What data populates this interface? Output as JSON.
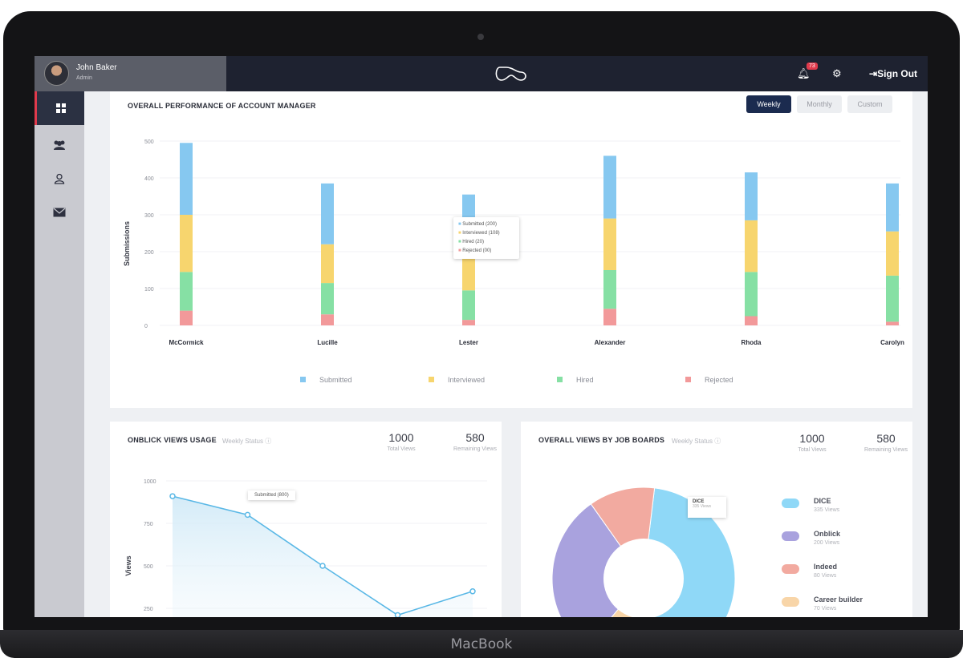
{
  "device": {
    "brand": "MacBook"
  },
  "topbar": {
    "user_name": "John Baker",
    "user_role": "Admin",
    "notification_count": "73",
    "signout_label": "Sign Out"
  },
  "sidebar": {
    "items": [
      {
        "name": "dashboard",
        "icon": "grid-icon"
      },
      {
        "name": "users",
        "icon": "users-icon"
      },
      {
        "name": "profile",
        "icon": "user-icon"
      },
      {
        "name": "mail",
        "icon": "mail-icon"
      }
    ]
  },
  "performance": {
    "title": "OVERALL PERFORMANCE OF ACCOUNT MANAGER",
    "buttons": [
      "Weekly",
      "Monthly",
      "Custom"
    ],
    "tooltip": [
      "Submitted (200)",
      "Interviewed (108)",
      "Hired (20)",
      "Rejected (00)"
    ]
  },
  "usage": {
    "title": "ONBLICK VIEWS USAGE",
    "status": "Weekly Status",
    "total": "1000",
    "total_label": "Total Views",
    "remaining": "580",
    "remaining_label": "Remaining Views",
    "tooltip": "Submitted (800)"
  },
  "boards": {
    "title": "OVERALL VIEWS BY JOB BOARDS",
    "status": "Weekly Status",
    "total": "1000",
    "total_label": "Total Views",
    "remaining": "580",
    "remaining_label": "Remaining Views",
    "tooltip_title": "DICE",
    "tooltip_sub": "335 Views",
    "legend": [
      {
        "name": "DICE",
        "sub": "335 Views"
      },
      {
        "name": "Onblick",
        "sub": "200 Views"
      },
      {
        "name": "Indeed",
        "sub": "80 Views"
      },
      {
        "name": "Career builder",
        "sub": "70 Views"
      }
    ]
  },
  "colors": {
    "submitted": "#86c8f0",
    "interviewed": "#f7d56e",
    "hired": "#86e0a4",
    "rejected": "#f2999a",
    "line": "#5ab8e6",
    "dice": "#8fd8f7",
    "onblick": "#a9a2de",
    "indeed": "#f2aaa0",
    "career": "#f8d5a8"
  },
  "chart_data": [
    {
      "type": "bar",
      "title": "OVERALL PERFORMANCE OF ACCOUNT MANAGER",
      "xlabel": "",
      "ylabel": "Submissions",
      "ylim": [
        0,
        500
      ],
      "yticks": [
        0,
        100,
        200,
        300,
        400,
        500
      ],
      "stacked": true,
      "categories": [
        "McCormick",
        "Lucille",
        "Lester",
        "Alexander",
        "Rhoda",
        "Carolyn"
      ],
      "series": [
        {
          "name": "Rejected",
          "values": [
            40,
            30,
            15,
            45,
            25,
            10
          ]
        },
        {
          "name": "Hired",
          "values": [
            105,
            85,
            80,
            105,
            120,
            125
          ]
        },
        {
          "name": "Interviewed",
          "values": [
            155,
            105,
            105,
            140,
            140,
            120
          ]
        },
        {
          "name": "Submitted",
          "values": [
            195,
            165,
            155,
            170,
            130,
            130
          ]
        }
      ],
      "legend": [
        "Submitted",
        "Interviewed",
        "Hired",
        "Rejected"
      ]
    },
    {
      "type": "area",
      "title": "ONBLICK VIEWS USAGE",
      "ylabel": "Views",
      "ylim": [
        0,
        1000
      ],
      "yticks": [
        250,
        500,
        750,
        1000
      ],
      "x": [
        1,
        2,
        3,
        4,
        5
      ],
      "values": [
        910,
        800,
        500,
        210,
        350
      ]
    },
    {
      "type": "pie",
      "title": "OVERALL VIEWS BY JOB BOARDS",
      "labels": [
        "DICE",
        "Onblick",
        "Indeed",
        "Career builder"
      ],
      "values": [
        335,
        200,
        80,
        70
      ]
    }
  ]
}
